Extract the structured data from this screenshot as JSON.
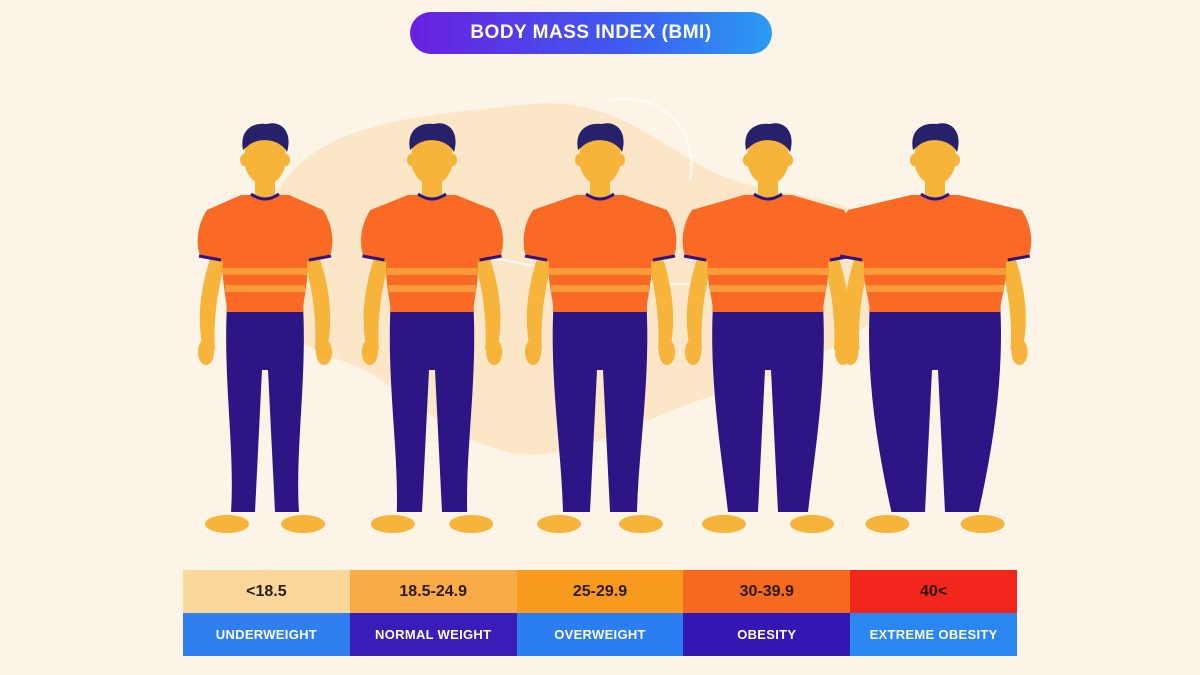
{
  "title": "BODY MASS INDEX (BMI)",
  "colors": {
    "skin": "#f7b43a",
    "hair": "#27206a",
    "shirt": "#fa6a24",
    "stripe": "#fd9a3a",
    "pants": "#2e1585",
    "background": "#fcf4e6"
  },
  "categories": [
    {
      "range": "<18.5",
      "label": "UNDERWEIGHT"
    },
    {
      "range": "18.5-24.9",
      "label": "NORMAL WEIGHT"
    },
    {
      "range": "25-29.9",
      "label": "OVERWEIGHT"
    },
    {
      "range": "30-39.9",
      "label": "OBESITY"
    },
    {
      "range": "40<",
      "label": "EXTREME OBESITY"
    }
  ]
}
